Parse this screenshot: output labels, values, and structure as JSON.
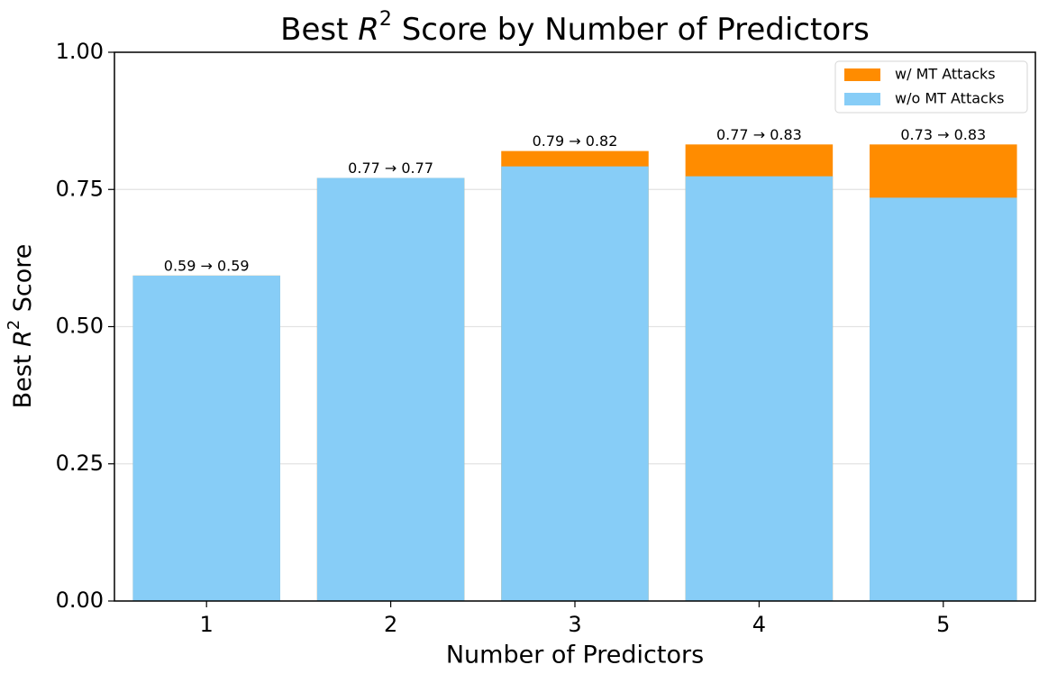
{
  "chart_data": {
    "type": "bar",
    "title": [
      "Best",
      "R",
      "2",
      "Score by Number of Predictors"
    ],
    "xlabel": "Number of Predictors",
    "ylabel": [
      "Best",
      "R",
      "2",
      "Score"
    ],
    "categories": [
      "1",
      "2",
      "3",
      "4",
      "5"
    ],
    "series": [
      {
        "name": "w/ MT Attacks",
        "color": "#ff8c00",
        "values": [
          0.593,
          0.771,
          0.82,
          0.832,
          0.832
        ]
      },
      {
        "name": "w/o MT Attacks",
        "color": "#87cdf7",
        "values": [
          0.593,
          0.771,
          0.792,
          0.774,
          0.735
        ]
      }
    ],
    "annotations": [
      "0.59 → 0.59",
      "0.77 → 0.77",
      "0.79 → 0.82",
      "0.77 → 0.83",
      "0.73 → 0.83"
    ],
    "ylim": [
      0,
      1
    ],
    "yticks": [
      {
        "value": 0,
        "label": "0.00"
      },
      {
        "value": 0.25,
        "label": "0.25"
      },
      {
        "value": 0.5,
        "label": "0.50"
      },
      {
        "value": 0.75,
        "label": "0.75"
      },
      {
        "value": 1,
        "label": "1.00"
      }
    ],
    "grid": true,
    "legend": "upper right"
  }
}
